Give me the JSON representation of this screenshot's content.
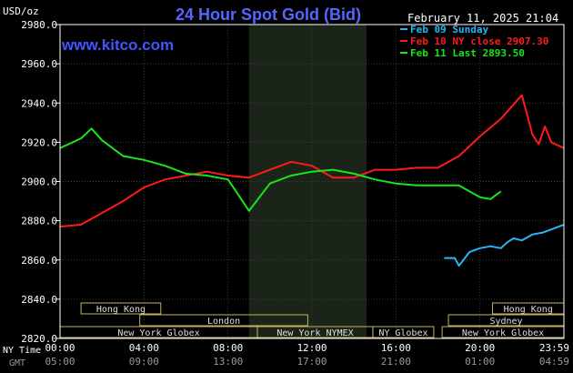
{
  "chart_data": {
    "type": "line",
    "title": "24 Hour Spot Gold (Bid)",
    "site": "www.kitco.com",
    "y_unit": "USD/oz",
    "date_text": "February 11, 2025 21:04",
    "ylim": [
      2820,
      2980
    ],
    "xlim": [
      0,
      24
    ],
    "yticks": [
      "2980.0",
      "2960.0",
      "2940.0",
      "2920.0",
      "2900.0",
      "2880.0",
      "2860.0",
      "2840.0",
      "2820.0"
    ],
    "ny_label": "NY Time",
    "gmt_label": "GMT",
    "ny_ticks": [
      "00:00",
      "04:00",
      "08:00",
      "12:00",
      "16:00",
      "20:00",
      "23:59"
    ],
    "gmt_ticks": [
      "05:00",
      "09:00",
      "13:00",
      "17:00",
      "21:00",
      "01:00",
      "04:59"
    ],
    "ny_tick_hours": [
      0,
      4,
      8,
      12,
      16,
      20,
      24
    ],
    "shaded_region": [
      9,
      14.6
    ],
    "sessions": [
      {
        "label": "Hong Kong",
        "start": 1,
        "end": 4.8
      },
      {
        "label": "London",
        "start": 3.8,
        "end": 11.8
      },
      {
        "label": "New York Globex",
        "start": 0,
        "end": 9.4
      },
      {
        "label": "New York NYMEX",
        "start": 9.4,
        "end": 14.9
      },
      {
        "label": "NY Globex",
        "start": 14.9,
        "end": 17.8
      },
      {
        "label": "Hong Kong",
        "start": 20.6,
        "end": 24
      },
      {
        "label": "Sydney",
        "start": 18.5,
        "end": 24
      },
      {
        "label": "New York Globex",
        "start": 18.2,
        "end": 24
      }
    ],
    "series": [
      {
        "name": "Feb 09 Sunday",
        "color": "#29b6f6",
        "points": [
          [
            18.3,
            2861
          ],
          [
            18.8,
            2861
          ],
          [
            19,
            2857
          ],
          [
            19.5,
            2864
          ],
          [
            20,
            2866
          ],
          [
            20.5,
            2867
          ],
          [
            21,
            2866
          ],
          [
            21.3,
            2869
          ],
          [
            21.6,
            2871
          ],
          [
            22,
            2870
          ],
          [
            22.5,
            2873
          ],
          [
            23,
            2874
          ],
          [
            23.5,
            2876
          ],
          [
            24,
            2878
          ]
        ]
      },
      {
        "name": "Feb 10 NY close 2907.30",
        "color": "#ff1a1a",
        "points": [
          [
            0,
            2877
          ],
          [
            1,
            2878
          ],
          [
            2,
            2884
          ],
          [
            3,
            2890
          ],
          [
            4,
            2897
          ],
          [
            5,
            2901
          ],
          [
            6,
            2903
          ],
          [
            7,
            2905
          ],
          [
            8,
            2903
          ],
          [
            9,
            2902
          ],
          [
            10,
            2906
          ],
          [
            11,
            2910
          ],
          [
            12,
            2908
          ],
          [
            13,
            2902
          ],
          [
            14,
            2902
          ],
          [
            15,
            2906
          ],
          [
            16,
            2906
          ],
          [
            17,
            2907
          ],
          [
            18,
            2907
          ],
          [
            19,
            2913
          ],
          [
            20,
            2923
          ],
          [
            21,
            2932
          ],
          [
            22,
            2944
          ],
          [
            22.5,
            2924
          ],
          [
            22.8,
            2919
          ],
          [
            23.1,
            2928
          ],
          [
            23.4,
            2920
          ],
          [
            24,
            2917
          ]
        ]
      },
      {
        "name": "Feb 11 Last 2893.50",
        "color": "#19e619",
        "points": [
          [
            0,
            2917
          ],
          [
            1,
            2922
          ],
          [
            1.5,
            2927
          ],
          [
            2,
            2921
          ],
          [
            3,
            2913
          ],
          [
            4,
            2911
          ],
          [
            5,
            2908
          ],
          [
            6,
            2904
          ],
          [
            7,
            2903
          ],
          [
            8,
            2901
          ],
          [
            9,
            2885
          ],
          [
            10,
            2899
          ],
          [
            11,
            2903
          ],
          [
            12,
            2905
          ],
          [
            13,
            2906
          ],
          [
            14,
            2904
          ],
          [
            15,
            2901
          ],
          [
            16,
            2899
          ],
          [
            17,
            2898
          ],
          [
            18,
            2898
          ],
          [
            19,
            2898
          ],
          [
            20,
            2892
          ],
          [
            20.5,
            2891
          ],
          [
            21,
            2895
          ]
        ]
      }
    ]
  }
}
